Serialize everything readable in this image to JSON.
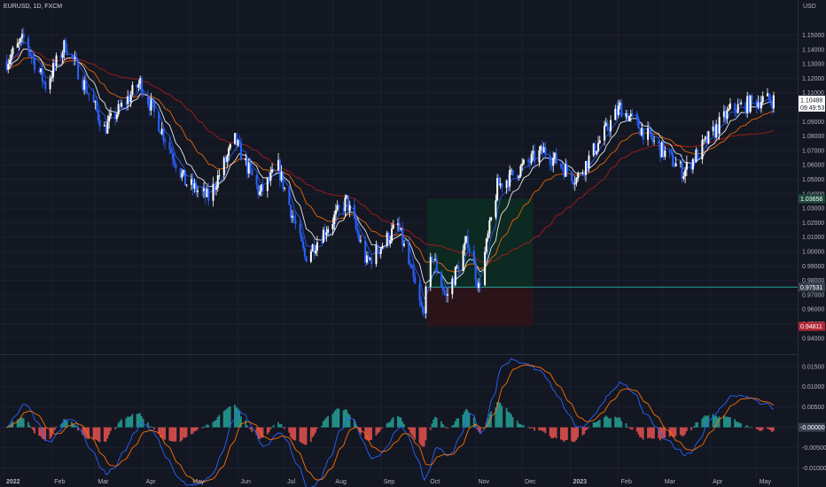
{
  "header": {
    "symbol": "EURUSD, 1D, FXCM",
    "currency": "USD"
  },
  "colors": {
    "background": "#131722",
    "grid": "#1c2030",
    "up_candle": "#ffffff",
    "down_candle": "#2962ff",
    "ema_fast": "#2962ff",
    "ema_mid": "#ffffff",
    "ema_slow": "#ff6d00",
    "sma_long": "#b71c1c",
    "target_line": "#26a69a",
    "profit_zone": "#0d2a22",
    "loss_zone": "#2a141a",
    "hist_pos": "#26a69a",
    "hist_neg": "#ef5350",
    "macd_line": "#2962ff",
    "signal_line": "#ff6d00"
  },
  "chart_data": [
    {
      "type": "candlestick",
      "title": "EURUSD, 1D, FXCM",
      "ylabel": "USD",
      "ylim": [
        0.935,
        1.165
      ],
      "y_ticks": [
        "1.15000",
        "1.14000",
        "1.13000",
        "1.12000",
        "1.11000",
        "1.10000",
        "1.09000",
        "1.08000",
        "1.07000",
        "1.06000",
        "1.05000",
        "1.04000",
        "1.03000",
        "1.02000",
        "1.01000",
        "1.00000",
        "0.99000",
        "0.98000",
        "0.97000",
        "0.96000",
        "0.95000",
        "0.94000"
      ],
      "x_labels": [
        "2022",
        "Feb",
        "Mar",
        "Apr",
        "May",
        "Jun",
        "Jul",
        "Aug",
        "Sep",
        "Oct",
        "Nov",
        "Dec",
        "2023",
        "Feb",
        "Mar",
        "Apr",
        "May"
      ],
      "price_path": [
        [
          "2022-01-03",
          1.132
        ],
        [
          "2022-01-14",
          1.147
        ],
        [
          "2022-01-28",
          1.115
        ],
        [
          "2022-02-10",
          1.144
        ],
        [
          "2022-03-07",
          1.085
        ],
        [
          "2022-03-30",
          1.117
        ],
        [
          "2022-04-28",
          1.048
        ],
        [
          "2022-05-13",
          1.037
        ],
        [
          "2022-05-30",
          1.077
        ],
        [
          "2022-06-15",
          1.04
        ],
        [
          "2022-06-27",
          1.058
        ],
        [
          "2022-07-14",
          0.996
        ],
        [
          "2022-08-10",
          1.035
        ],
        [
          "2022-08-23",
          0.992
        ],
        [
          "2022-09-12",
          1.018
        ],
        [
          "2022-09-28",
          0.956
        ],
        [
          "2022-10-04",
          0.998
        ],
        [
          "2022-10-13",
          0.968
        ],
        [
          "2022-10-27",
          1.008
        ],
        [
          "2022-11-03",
          0.975
        ],
        [
          "2022-11-15",
          1.045
        ],
        [
          "2022-12-15",
          1.07
        ],
        [
          "2023-01-05",
          1.05
        ],
        [
          "2023-02-02",
          1.1
        ],
        [
          "2023-03-01",
          1.07
        ],
        [
          "2023-03-15",
          1.055
        ],
        [
          "2023-04-14",
          1.098
        ],
        [
          "2023-05-04",
          1.105
        ],
        [
          "2023-05-12",
          1.1049
        ]
      ],
      "last_price": "1.10488",
      "countdown": "09:49:53",
      "position_tool": {
        "entry": "0.97531",
        "target": "1.03656",
        "stop": "0.94811",
        "start": "2022-10-01",
        "end": "2022-12-08"
      },
      "series": [
        {
          "name": "",
          "kind": "ema_fast"
        },
        {
          "name": "",
          "kind": "ema_mid"
        },
        {
          "name": "",
          "kind": "ema_slow"
        },
        {
          "name": "",
          "kind": "sma_long"
        }
      ]
    },
    {
      "type": "macd",
      "ylim": [
        -0.0125,
        0.018
      ],
      "y_ticks": [
        "0.01500",
        "0.01000",
        "0.00500",
        "0.00000",
        "-0.00500",
        "-0.01000"
      ],
      "highlight": "-0.00000"
    }
  ]
}
